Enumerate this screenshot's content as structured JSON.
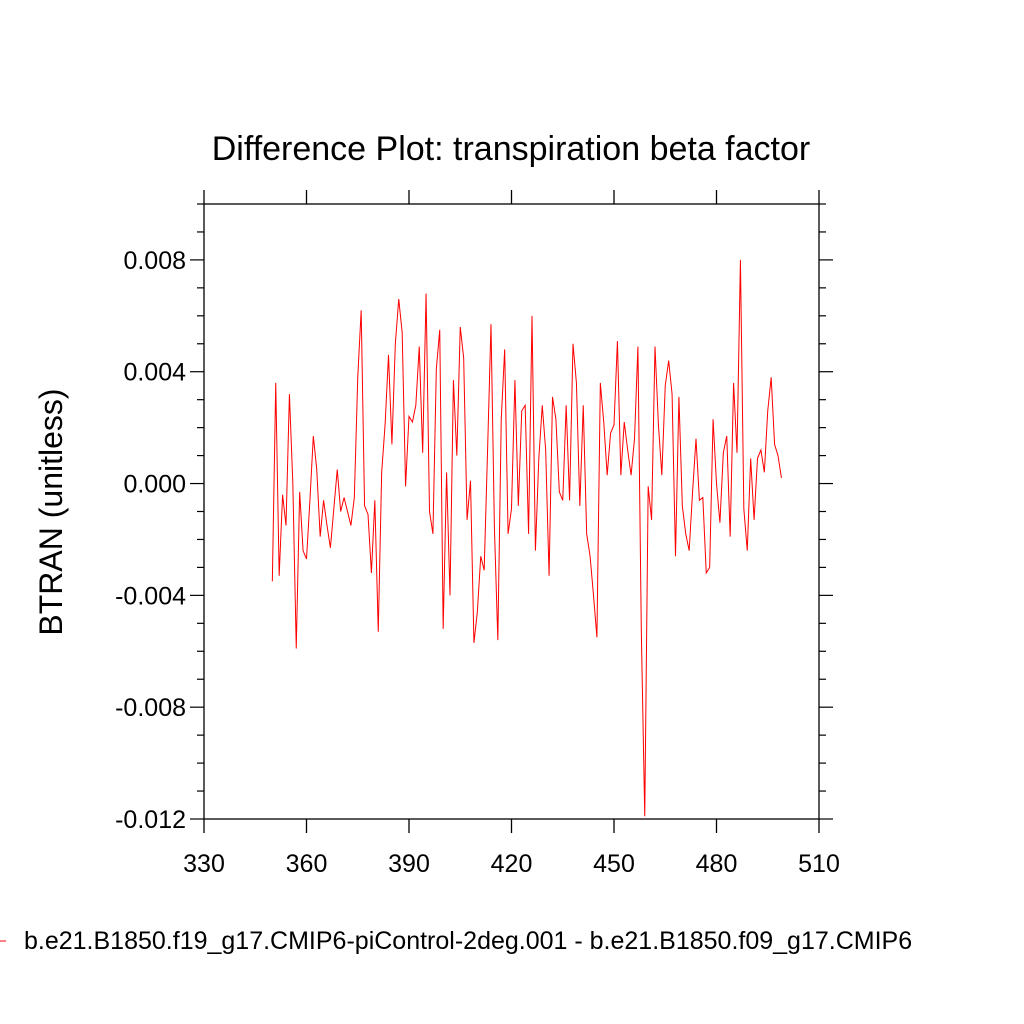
{
  "chart_data": {
    "type": "line",
    "title": "Difference Plot: transpiration beta factor",
    "xlabel": "",
    "ylabel": "BTRAN  (unitless)",
    "xlim": [
      330,
      510
    ],
    "ylim": [
      -0.012,
      0.01
    ],
    "x_ticks": [
      330,
      360,
      390,
      420,
      450,
      480,
      510
    ],
    "x_tick_labels": [
      "330",
      "360",
      "390",
      "420",
      "450",
      "480",
      "510"
    ],
    "y_ticks": [
      -0.012,
      -0.008,
      -0.004,
      0.0,
      0.004,
      0.008
    ],
    "y_tick_labels": [
      "-0.012",
      "-0.008",
      "-0.004",
      "0.000",
      "0.004",
      "0.008"
    ],
    "grid": false,
    "legend_position": "bottom",
    "series": [
      {
        "name": "b.e21.B1850.f19_g17.CMIP6-piControl-2deg.001 - b.e21.B1850.f09_g17.CMIP6",
        "color": "#ff0000",
        "x": [
          350,
          351,
          352,
          353,
          354,
          355,
          356,
          357,
          358,
          359,
          360,
          361,
          362,
          363,
          364,
          365,
          366,
          367,
          368,
          369,
          370,
          371,
          372,
          373,
          374,
          375,
          376,
          377,
          378,
          379,
          380,
          381,
          382,
          383,
          384,
          385,
          386,
          387,
          388,
          389,
          390,
          391,
          392,
          393,
          394,
          395,
          396,
          397,
          398,
          399,
          400,
          401,
          402,
          403,
          404,
          405,
          406,
          407,
          408,
          409,
          410,
          411,
          412,
          413,
          414,
          415,
          416,
          417,
          418,
          419,
          420,
          421,
          422,
          423,
          424,
          425,
          426,
          427,
          428,
          429,
          430,
          431,
          432,
          433,
          434,
          435,
          436,
          437,
          438,
          439,
          440,
          441,
          442,
          443,
          444,
          445,
          446,
          447,
          448,
          449,
          450,
          451,
          452,
          453,
          454,
          455,
          456,
          457,
          458,
          459,
          460,
          461,
          462,
          463,
          464,
          465,
          466,
          467,
          468,
          469,
          470,
          471,
          472,
          473,
          474,
          475,
          476,
          477,
          478,
          479,
          480,
          481,
          482,
          483,
          484,
          485,
          486,
          487,
          488,
          489,
          490,
          491,
          492,
          493,
          494,
          495,
          496,
          497,
          498,
          499
        ],
        "y": [
          -0.0035,
          0.0036,
          -0.0033,
          -0.0004,
          -0.0015,
          0.0032,
          0.0,
          -0.0059,
          -0.0003,
          -0.0024,
          -0.0027,
          -0.0006,
          0.0017,
          0.0005,
          -0.0019,
          -0.0006,
          -0.0015,
          -0.0023,
          -0.0009,
          0.0005,
          -0.001,
          -0.0005,
          -0.001,
          -0.0015,
          -0.0005,
          0.0038,
          0.0062,
          -0.0008,
          -0.0011,
          -0.0032,
          -0.0006,
          -0.0053,
          0.0004,
          0.0021,
          0.0046,
          0.0014,
          0.005,
          0.0066,
          0.0054,
          -0.0001,
          0.0024,
          0.0022,
          0.0028,
          0.0049,
          0.0011,
          0.0068,
          -0.001,
          -0.0018,
          0.0041,
          0.0055,
          -0.0052,
          0.0004,
          -0.004,
          0.0037,
          0.001,
          0.0056,
          0.0045,
          -0.0013,
          0.0001,
          -0.0057,
          -0.0046,
          -0.0026,
          -0.0031,
          0.0012,
          0.0057,
          -0.0016,
          -0.0056,
          0.0023,
          0.0048,
          -0.0018,
          -0.0009,
          0.0037,
          -0.0008,
          0.0026,
          0.0028,
          -0.0018,
          0.006,
          -0.0024,
          0.0009,
          0.0028,
          0.0012,
          -0.0033,
          0.0031,
          0.0023,
          -0.0003,
          -0.0006,
          0.0028,
          -0.0006,
          0.005,
          0.0036,
          -0.0008,
          0.0028,
          -0.0018,
          -0.0026,
          -0.004,
          -0.0055,
          0.0036,
          0.0022,
          0.0003,
          0.0018,
          0.0021,
          0.0051,
          0.0003,
          0.0022,
          0.0012,
          0.0003,
          0.0016,
          0.0049,
          -0.0053,
          -0.0119,
          -0.0001,
          -0.0013,
          0.0049,
          0.0021,
          0.0003,
          0.0035,
          0.0044,
          0.0032,
          -0.0026,
          0.0031,
          -0.0008,
          -0.0018,
          -0.0024,
          -0.0003,
          0.0016,
          -0.0006,
          -0.0005,
          -0.0032,
          -0.003,
          0.0023,
          0.0,
          -0.0014,
          0.0011,
          0.0017,
          -0.0019,
          0.0036,
          0.0011,
          0.008,
          -0.0009,
          -0.0024,
          0.0009,
          -0.0013,
          0.0009,
          0.0012,
          0.0004,
          0.0026,
          0.0038,
          0.0014,
          0.001,
          0.0002
        ]
      }
    ]
  }
}
